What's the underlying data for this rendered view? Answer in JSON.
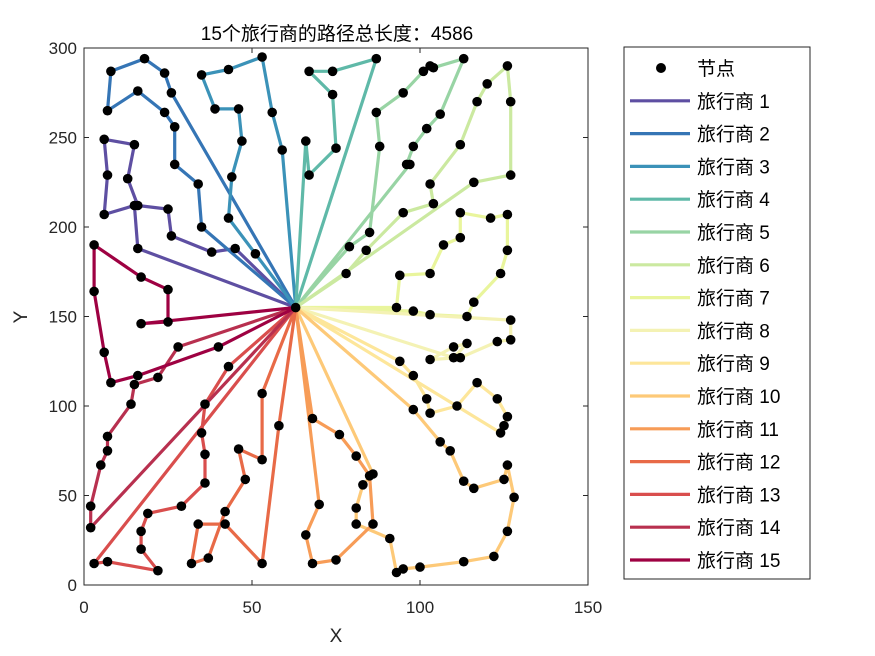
{
  "chart_data": {
    "type": "line",
    "title": "15个旅行商的路径总长度：4586",
    "xlabel": "X",
    "ylabel": "Y",
    "xlim": [
      0,
      150
    ],
    "ylim": [
      0,
      300
    ],
    "xticks": [
      "0",
      "50",
      "100",
      "150"
    ],
    "yticks": [
      "0",
      "50",
      "100",
      "150",
      "200",
      "250",
      "300"
    ],
    "grid": false,
    "legend_position": "right",
    "depot": [
      63,
      155
    ],
    "node_legend": "节点",
    "series": [
      {
        "name": "旅行商 1",
        "color": "#5e4fa2",
        "points": [
          [
            63,
            155
          ],
          [
            16,
            188
          ],
          [
            15,
            212
          ],
          [
            6,
            207
          ],
          [
            7,
            229
          ],
          [
            6,
            249
          ],
          [
            15,
            246
          ],
          [
            13,
            227
          ],
          [
            16,
            212
          ],
          [
            25,
            210
          ],
          [
            26,
            195
          ],
          [
            38,
            186
          ],
          [
            45,
            188
          ],
          [
            63,
            155
          ]
        ]
      },
      {
        "name": "旅行商 2",
        "color": "#3575b5",
        "points": [
          [
            63,
            155
          ],
          [
            35,
            200
          ],
          [
            34,
            224
          ],
          [
            27,
            235
          ],
          [
            27,
            256
          ],
          [
            24,
            264
          ],
          [
            16,
            276
          ],
          [
            7,
            265
          ],
          [
            8,
            287
          ],
          [
            18,
            294
          ],
          [
            24,
            286
          ],
          [
            26,
            275
          ],
          [
            63,
            155
          ]
        ]
      },
      {
        "name": "旅行商 3",
        "color": "#3b92b8",
        "points": [
          [
            63,
            155
          ],
          [
            51,
            185
          ],
          [
            43,
            205
          ],
          [
            44,
            228
          ],
          [
            47,
            248
          ],
          [
            46,
            266
          ],
          [
            39,
            266
          ],
          [
            35,
            285
          ],
          [
            43,
            288
          ],
          [
            53,
            295
          ],
          [
            56,
            264
          ],
          [
            59,
            243
          ],
          [
            63,
            155
          ]
        ]
      },
      {
        "name": "旅行商 4",
        "color": "#5fb9a8",
        "points": [
          [
            63,
            155
          ],
          [
            66,
            248
          ],
          [
            67,
            229
          ],
          [
            75,
            244
          ],
          [
            74,
            274
          ],
          [
            67,
            287
          ],
          [
            74,
            287
          ],
          [
            87,
            294
          ],
          [
            63,
            155
          ]
        ]
      },
      {
        "name": "旅行商 5",
        "color": "#98d4a4",
        "points": [
          [
            63,
            155
          ],
          [
            79,
            189
          ],
          [
            85,
            197
          ],
          [
            88,
            245
          ],
          [
            87,
            264
          ],
          [
            95,
            275
          ],
          [
            101,
            287
          ],
          [
            103,
            290
          ],
          [
            104,
            289
          ],
          [
            113,
            294
          ],
          [
            106,
            263
          ],
          [
            102,
            255
          ],
          [
            98,
            245
          ],
          [
            96,
            235
          ],
          [
            97,
            235
          ],
          [
            63,
            155
          ]
        ]
      },
      {
        "name": "旅行商 6",
        "color": "#cbe9a0",
        "points": [
          [
            63,
            155
          ],
          [
            78,
            174
          ],
          [
            84,
            187
          ],
          [
            95,
            208
          ],
          [
            104,
            213
          ],
          [
            103,
            224
          ],
          [
            112,
            246
          ],
          [
            117,
            270
          ],
          [
            120,
            280
          ],
          [
            126,
            290
          ],
          [
            127,
            270
          ],
          [
            127,
            229
          ],
          [
            116,
            225
          ],
          [
            63,
            155
          ]
        ]
      },
      {
        "name": "旅行商 7",
        "color": "#e9f59c",
        "points": [
          [
            63,
            155
          ],
          [
            93,
            155
          ],
          [
            94,
            173
          ],
          [
            103,
            174
          ],
          [
            107,
            190
          ],
          [
            112,
            194
          ],
          [
            112,
            208
          ],
          [
            121,
            205
          ],
          [
            126,
            207
          ],
          [
            126,
            187
          ],
          [
            124,
            174
          ],
          [
            116,
            158
          ],
          [
            114,
            150
          ],
          [
            103,
            151
          ],
          [
            98,
            153
          ],
          [
            63,
            155
          ]
        ]
      },
      {
        "name": "旅行商 8",
        "color": "#f4f2b4",
        "points": [
          [
            63,
            155
          ],
          [
            127,
            148
          ],
          [
            127,
            137
          ],
          [
            123,
            136
          ],
          [
            112,
            127
          ],
          [
            103,
            126
          ],
          [
            110,
            133
          ],
          [
            114,
            135
          ],
          [
            110,
            127
          ],
          [
            63,
            155
          ]
        ]
      },
      {
        "name": "旅行商 9",
        "color": "#fde69a",
        "points": [
          [
            63,
            155
          ],
          [
            94,
            125
          ],
          [
            98,
            117
          ],
          [
            102,
            104
          ],
          [
            103,
            96
          ],
          [
            111,
            100
          ],
          [
            117,
            113
          ],
          [
            123,
            104
          ],
          [
            126,
            94
          ],
          [
            125,
            89
          ],
          [
            124,
            85
          ],
          [
            63,
            155
          ]
        ]
      },
      {
        "name": "旅行商 10",
        "color": "#fdc978",
        "points": [
          [
            63,
            155
          ],
          [
            98,
            98
          ],
          [
            106,
            80
          ],
          [
            109,
            75
          ],
          [
            113,
            58
          ],
          [
            116,
            54
          ],
          [
            125,
            59
          ],
          [
            126,
            67
          ],
          [
            128,
            49
          ],
          [
            126,
            30
          ],
          [
            122,
            16
          ],
          [
            113,
            13
          ],
          [
            100,
            10
          ],
          [
            95,
            9
          ],
          [
            93,
            7
          ],
          [
            91,
            26
          ],
          [
            81,
            34
          ],
          [
            81,
            43
          ],
          [
            83,
            56
          ],
          [
            86,
            62
          ],
          [
            63,
            155
          ]
        ]
      },
      {
        "name": "旅行商 11",
        "color": "#f79c57",
        "points": [
          [
            63,
            155
          ],
          [
            68,
            93
          ],
          [
            76,
            84
          ],
          [
            81,
            72
          ],
          [
            85,
            61
          ],
          [
            86,
            34
          ],
          [
            75,
            14
          ],
          [
            68,
            12
          ],
          [
            66,
            28
          ],
          [
            70,
            45
          ],
          [
            63,
            155
          ]
        ]
      },
      {
        "name": "旅行商 12",
        "color": "#e86a47",
        "points": [
          [
            63,
            155
          ],
          [
            53,
            107
          ],
          [
            53,
            70
          ],
          [
            46,
            76
          ],
          [
            48,
            59
          ],
          [
            42,
            41
          ],
          [
            37,
            15
          ],
          [
            32,
            12
          ],
          [
            34,
            34
          ],
          [
            42,
            34
          ],
          [
            53,
            12
          ],
          [
            58,
            89
          ],
          [
            63,
            155
          ]
        ]
      },
      {
        "name": "旅行商 13",
        "color": "#d94e4d",
        "points": [
          [
            63,
            155
          ],
          [
            43,
            122
          ],
          [
            36,
            101
          ],
          [
            35,
            85
          ],
          [
            36,
            73
          ],
          [
            36,
            57
          ],
          [
            29,
            44
          ],
          [
            19,
            40
          ],
          [
            17,
            30
          ],
          [
            17,
            20
          ],
          [
            22,
            8
          ],
          [
            7,
            13
          ],
          [
            3,
            12
          ],
          [
            63,
            155
          ]
        ]
      },
      {
        "name": "旅行商 14",
        "color": "#b8304f",
        "points": [
          [
            63,
            155
          ],
          [
            28,
            133
          ],
          [
            22,
            116
          ],
          [
            15,
            112
          ],
          [
            14,
            101
          ],
          [
            7,
            83
          ],
          [
            7,
            75
          ],
          [
            5,
            67
          ],
          [
            2,
            44
          ],
          [
            2,
            32
          ],
          [
            63,
            155
          ]
        ]
      },
      {
        "name": "旅行商 15",
        "color": "#9e0142",
        "points": [
          [
            63,
            155
          ],
          [
            17,
            146
          ],
          [
            25,
            147
          ],
          [
            25,
            165
          ],
          [
            17,
            172
          ],
          [
            3,
            190
          ],
          [
            3,
            164
          ],
          [
            6,
            130
          ],
          [
            8,
            113
          ],
          [
            16,
            117
          ],
          [
            40,
            133
          ],
          [
            63,
            155
          ]
        ]
      }
    ]
  }
}
